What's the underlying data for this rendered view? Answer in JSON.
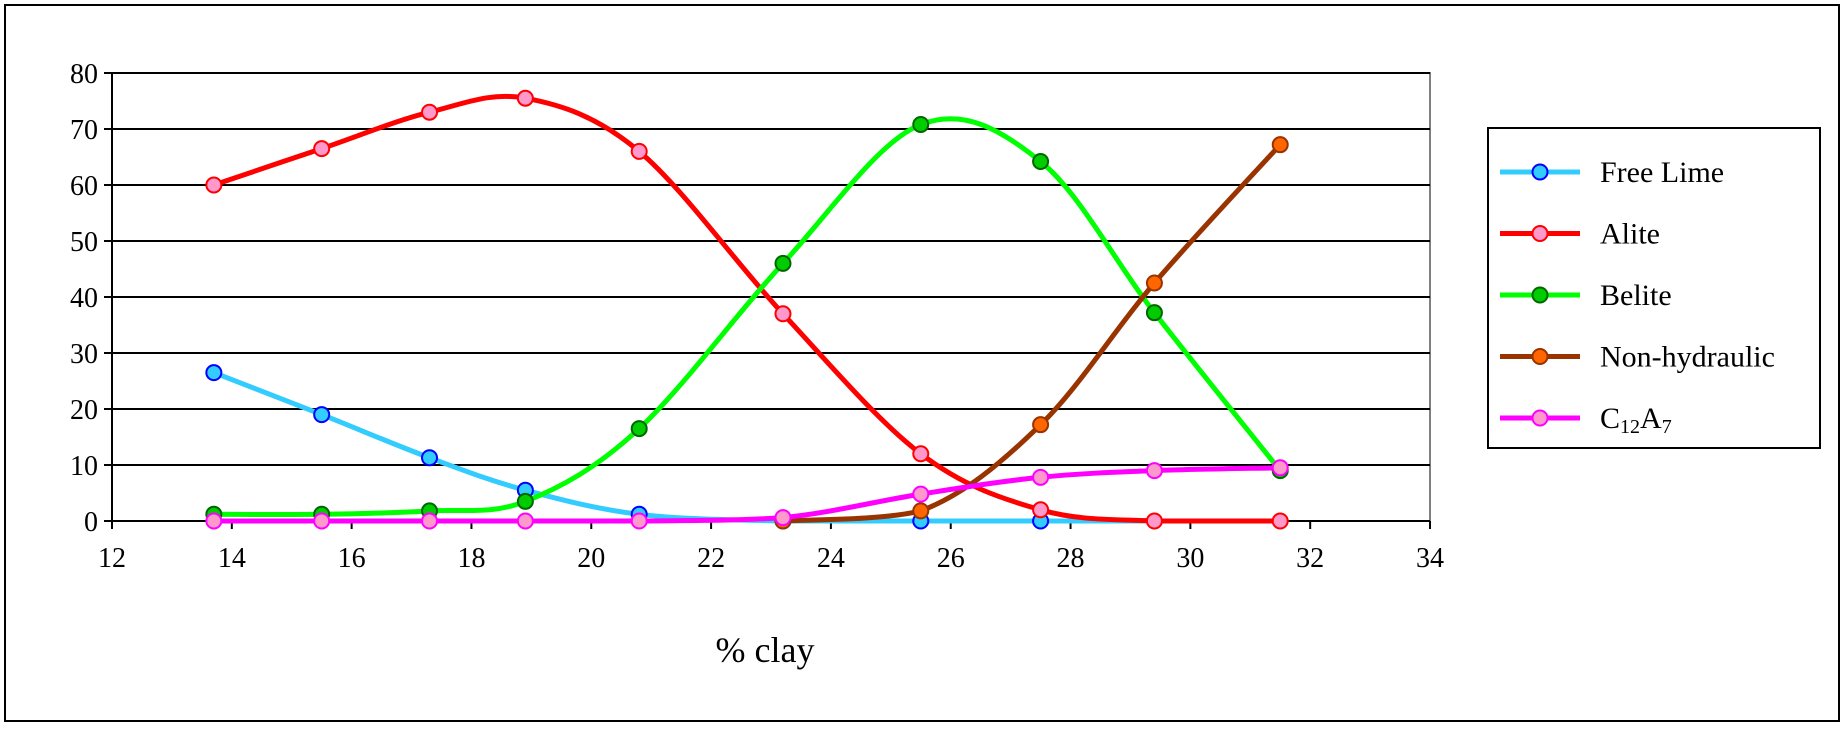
{
  "chart_data": {
    "type": "line",
    "title": "",
    "xlabel": "% clay",
    "ylabel": "",
    "xlim": [
      12,
      34
    ],
    "ylim": [
      0,
      80
    ],
    "x_ticks": [
      12,
      14,
      16,
      18,
      20,
      22,
      24,
      26,
      28,
      30,
      32,
      34
    ],
    "y_ticks": [
      0,
      10,
      20,
      30,
      40,
      50,
      60,
      70,
      80
    ],
    "grid": "horizontal",
    "legend_position": "right",
    "smooth": true,
    "series": [
      {
        "name": "Free Lime",
        "color": "#33ccff",
        "marker_fill": "#33ccff",
        "marker_edge": "#0000ff",
        "x": [
          13.7,
          15.5,
          17.3,
          18.9,
          20.8,
          23.2,
          25.5,
          27.5,
          29.4,
          31.5
        ],
        "y": [
          26.5,
          19.0,
          11.3,
          5.5,
          1.2,
          0.0,
          0.0,
          0.0,
          0.0,
          0.0
        ],
        "marker_count": 8
      },
      {
        "name": "Alite",
        "color": "#ff0000",
        "marker_fill": "#ff99cc",
        "marker_edge": "#ff0000",
        "x": [
          13.7,
          15.5,
          17.3,
          18.9,
          20.8,
          23.2,
          25.5,
          27.5,
          29.4,
          31.5
        ],
        "y": [
          60.0,
          66.5,
          73.0,
          75.5,
          66.0,
          37.0,
          12.0,
          2.0,
          0.0,
          0.0
        ],
        "marker_count": 10
      },
      {
        "name": "Belite",
        "color": "#00ff00",
        "marker_fill": "#00cc00",
        "marker_edge": "#006600",
        "x": [
          13.7,
          15.5,
          17.3,
          18.9,
          20.8,
          23.2,
          25.5,
          27.5,
          29.4,
          31.5
        ],
        "y": [
          1.2,
          1.2,
          1.8,
          3.5,
          16.5,
          46.0,
          70.8,
          64.2,
          37.2,
          9.0
        ],
        "marker_count": 10
      },
      {
        "name": "Non-hydraulic",
        "color": "#993300",
        "marker_fill": "#ff6600",
        "marker_edge": "#993300",
        "x": [
          23.2,
          25.5,
          27.5,
          29.4,
          31.5
        ],
        "y": [
          0.0,
          1.8,
          17.2,
          42.5,
          67.2
        ],
        "marker_count": 5
      },
      {
        "name": "C12A7",
        "name_parts": {
          "base1": "C",
          "sub1": "12",
          "base2": "A",
          "sub2": "7"
        },
        "color": "#ff00ff",
        "marker_fill": "#ff99cc",
        "marker_edge": "#ff00ff",
        "x": [
          13.7,
          15.5,
          17.3,
          18.9,
          20.8,
          23.2,
          25.5,
          27.5,
          29.4,
          31.5
        ],
        "y": [
          0.0,
          0.0,
          0.0,
          0.0,
          0.0,
          0.6,
          4.8,
          7.8,
          9.0,
          9.5
        ],
        "marker_count": 10
      }
    ]
  }
}
